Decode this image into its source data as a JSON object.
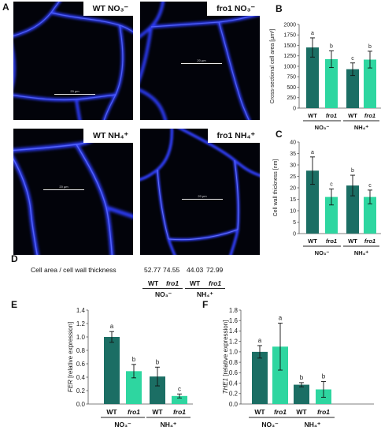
{
  "panels": {
    "A": "A",
    "B": "B",
    "C": "C",
    "D": "D",
    "E": "E",
    "F": "F"
  },
  "micrographs": [
    {
      "label": "WT NO₃⁻",
      "scale": "20 µm"
    },
    {
      "label": "fro1 NO₃⁻",
      "scale": "20 µm"
    },
    {
      "label": "WT NH₄⁺",
      "scale": "20 µm"
    },
    {
      "label": "fro1 NH₄⁺",
      "scale": "20 µm"
    }
  ],
  "tableD": {
    "row_label": "Cell area / cell wall thickness",
    "values": [
      "52.77",
      "74.55",
      "44.03",
      "72.99"
    ],
    "genotypes": [
      "WT",
      "fro1",
      "WT",
      "fro1"
    ],
    "groups": [
      "NO₃⁻",
      "NH₄⁺"
    ]
  },
  "colors": {
    "wt": "#1b6e64",
    "fro1": "#2ed6a0"
  },
  "chart_data": [
    {
      "panel": "B",
      "type": "bar",
      "ylabel": "Cross-sectional cell area [µm²]",
      "ylim": [
        0,
        2000
      ],
      "yticks": [
        0,
        250,
        500,
        750,
        1000,
        1250,
        1500,
        1750,
        2000
      ],
      "categories": [
        "WT",
        "fro1",
        "WT",
        "fro1"
      ],
      "groups": [
        "NO₃⁻",
        "NH₄⁺"
      ],
      "values": [
        1450,
        1170,
        930,
        1160
      ],
      "errors": [
        230,
        200,
        150,
        200
      ],
      "letters": [
        "a",
        "b",
        "c",
        "b"
      ]
    },
    {
      "panel": "C",
      "type": "bar",
      "ylabel": "Cell wall thickness [nm]",
      "ylim": [
        0,
        40
      ],
      "yticks": [
        0,
        5,
        10,
        15,
        20,
        25,
        30,
        35,
        40
      ],
      "categories": [
        "WT",
        "fro1",
        "WT",
        "fro1"
      ],
      "groups": [
        "NO₃⁻",
        "NH₄⁺"
      ],
      "values": [
        27.5,
        16,
        21,
        16
      ],
      "errors": [
        6,
        3.5,
        4.5,
        3
      ],
      "letters": [
        "a",
        "c",
        "b",
        "c"
      ]
    },
    {
      "panel": "E",
      "type": "bar",
      "ylabel": "FER [relative expression]",
      "ylim": [
        0,
        1.4
      ],
      "yticks": [
        "0.0",
        "0.2",
        "0.4",
        "0.6",
        "0.8",
        "1.0",
        "1.2",
        "1.4"
      ],
      "categories": [
        "WT",
        "fro1",
        "WT",
        "fro1"
      ],
      "groups": [
        "NO₃⁻",
        "NH₄⁺"
      ],
      "values": [
        1.0,
        0.49,
        0.41,
        0.12
      ],
      "errors": [
        0.08,
        0.1,
        0.14,
        0.03
      ],
      "letters": [
        "a",
        "b",
        "b",
        "c"
      ]
    },
    {
      "panel": "F",
      "type": "bar",
      "ylabel": "THE1 [relative expression]",
      "ylim": [
        0,
        1.8
      ],
      "yticks": [
        "0.0",
        "0.2",
        "0.4",
        "0.6",
        "0.8",
        "1.0",
        "1.2",
        "1.4",
        "1.6",
        "1.8"
      ],
      "categories": [
        "WT",
        "fro1",
        "WT",
        "fro1"
      ],
      "groups": [
        "NO₃⁻",
        "NH₄⁺"
      ],
      "values": [
        1.0,
        1.1,
        0.37,
        0.28
      ],
      "errors": [
        0.12,
        0.45,
        0.04,
        0.15
      ],
      "letters": [
        "a",
        "a",
        "b",
        "b"
      ]
    }
  ]
}
